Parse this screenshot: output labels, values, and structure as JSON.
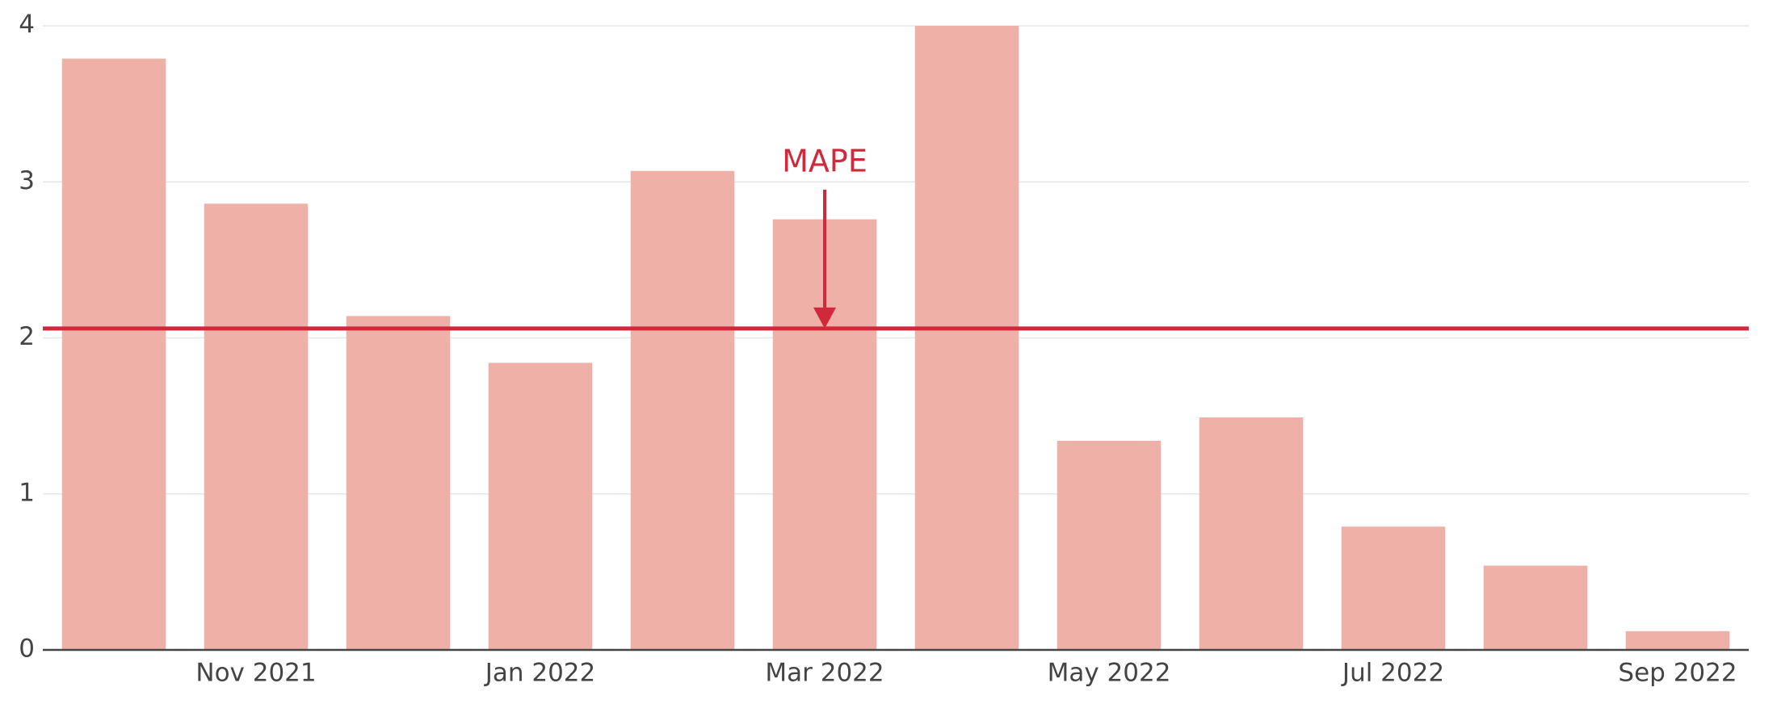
{
  "chart_data": {
    "type": "bar",
    "categories": [
      null,
      "Nov 2021",
      null,
      "Jan 2022",
      null,
      "Mar 2022",
      null,
      "May 2022",
      null,
      "Jul 2022",
      null,
      "Sep 2022"
    ],
    "values": [
      3.79,
      2.86,
      2.14,
      1.84,
      3.07,
      2.76,
      4.0,
      1.34,
      1.49,
      0.79,
      0.54,
      0.12
    ],
    "color": "#eeb0a7",
    "ylim": [
      0,
      4
    ],
    "yticks": [
      0,
      1,
      2,
      3,
      4
    ],
    "grid": true,
    "reference_line": {
      "value": 2.06,
      "label": "MAPE",
      "color": "#d0293c"
    }
  }
}
